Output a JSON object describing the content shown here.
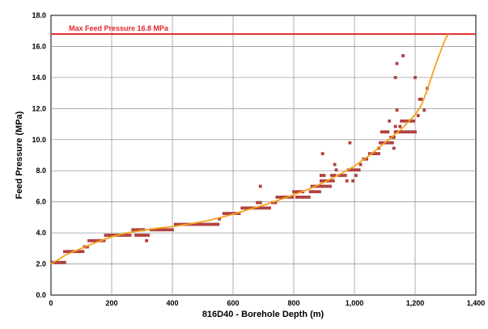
{
  "chart_data": {
    "type": "scatter",
    "title": "",
    "xlabel": "816D40 - Borehole Depth (m)",
    "ylabel": "Feed Pressure (MPa)",
    "xlim": [
      0,
      1400
    ],
    "ylim": [
      0,
      18
    ],
    "x_ticks": [
      0,
      200,
      400,
      600,
      800,
      1000,
      1200,
      1400
    ],
    "x_tick_labels": [
      "0",
      "200",
      "400",
      "600",
      "800",
      "1,000",
      "1,200",
      "1,400"
    ],
    "y_ticks": [
      0,
      2,
      4,
      6,
      8,
      10,
      12,
      14,
      16,
      18
    ],
    "y_tick_labels": [
      "0.0",
      "2.0",
      "4.0",
      "6.0",
      "8.0",
      "10.0",
      "12.0",
      "14.0",
      "16.0",
      "18.0"
    ],
    "grid": true,
    "reference_line": {
      "label": "Max Feed Pressure 16.8 MPa",
      "y": 16.8,
      "color": "#e0262b"
    },
    "colors": {
      "points": "#b0403e",
      "trend": "#f5a21b",
      "grid": "#9a9a9a"
    },
    "series": [
      {
        "kind": "scatter",
        "points": [
          [
            5,
            2.1
          ],
          [
            15,
            2.1
          ],
          [
            25,
            2.1
          ],
          [
            35,
            2.1
          ],
          [
            45,
            2.1
          ],
          [
            45,
            2.8
          ],
          [
            55,
            2.8
          ],
          [
            65,
            2.8
          ],
          [
            75,
            2.8
          ],
          [
            85,
            2.8
          ],
          [
            95,
            2.8
          ],
          [
            105,
            2.8
          ],
          [
            110,
            3.1
          ],
          [
            120,
            3.1
          ],
          [
            125,
            3.5
          ],
          [
            135,
            3.5
          ],
          [
            145,
            3.5
          ],
          [
            155,
            3.5
          ],
          [
            165,
            3.5
          ],
          [
            175,
            3.5
          ],
          [
            180,
            3.85
          ],
          [
            190,
            3.85
          ],
          [
            200,
            3.85
          ],
          [
            210,
            3.85
          ],
          [
            220,
            3.85
          ],
          [
            230,
            3.85
          ],
          [
            240,
            3.85
          ],
          [
            250,
            3.85
          ],
          [
            260,
            3.85
          ],
          [
            270,
            4.2
          ],
          [
            280,
            4.2
          ],
          [
            290,
            4.2
          ],
          [
            300,
            4.2
          ],
          [
            305,
            4.2
          ],
          [
            280,
            3.85
          ],
          [
            290,
            3.85
          ],
          [
            300,
            3.85
          ],
          [
            310,
            3.85
          ],
          [
            320,
            3.85
          ],
          [
            315,
            3.5
          ],
          [
            330,
            4.2
          ],
          [
            340,
            4.2
          ],
          [
            350,
            4.2
          ],
          [
            360,
            4.2
          ],
          [
            370,
            4.2
          ],
          [
            380,
            4.2
          ],
          [
            390,
            4.2
          ],
          [
            400,
            4.2
          ],
          [
            410,
            4.55
          ],
          [
            420,
            4.55
          ],
          [
            430,
            4.55
          ],
          [
            440,
            4.55
          ],
          [
            450,
            4.55
          ],
          [
            460,
            4.55
          ],
          [
            470,
            4.55
          ],
          [
            480,
            4.55
          ],
          [
            490,
            4.55
          ],
          [
            500,
            4.55
          ],
          [
            510,
            4.55
          ],
          [
            520,
            4.55
          ],
          [
            530,
            4.55
          ],
          [
            540,
            4.55
          ],
          [
            550,
            4.55
          ],
          [
            555,
            4.9
          ],
          [
            570,
            5.25
          ],
          [
            580,
            5.25
          ],
          [
            590,
            5.25
          ],
          [
            600,
            5.25
          ],
          [
            610,
            5.25
          ],
          [
            620,
            5.25
          ],
          [
            630,
            5.6
          ],
          [
            640,
            5.6
          ],
          [
            650,
            5.6
          ],
          [
            660,
            5.6
          ],
          [
            670,
            5.6
          ],
          [
            680,
            5.6
          ],
          [
            690,
            5.6
          ],
          [
            700,
            5.6
          ],
          [
            710,
            5.6
          ],
          [
            720,
            5.6
          ],
          [
            680,
            5.95
          ],
          [
            690,
            5.95
          ],
          [
            690,
            7.0
          ],
          [
            730,
            5.95
          ],
          [
            740,
            5.95
          ],
          [
            745,
            6.3
          ],
          [
            755,
            6.3
          ],
          [
            765,
            6.3
          ],
          [
            775,
            6.3
          ],
          [
            785,
            6.3
          ],
          [
            795,
            6.3
          ],
          [
            810,
            6.3
          ],
          [
            820,
            6.3
          ],
          [
            830,
            6.3
          ],
          [
            840,
            6.3
          ],
          [
            850,
            6.3
          ],
          [
            800,
            6.65
          ],
          [
            810,
            6.65
          ],
          [
            820,
            6.65
          ],
          [
            830,
            6.65
          ],
          [
            855,
            6.65
          ],
          [
            865,
            6.65
          ],
          [
            875,
            6.65
          ],
          [
            885,
            6.65
          ],
          [
            860,
            7.0
          ],
          [
            870,
            7.0
          ],
          [
            880,
            7.0
          ],
          [
            890,
            7.0
          ],
          [
            900,
            7.0
          ],
          [
            910,
            7.0
          ],
          [
            920,
            7.0
          ],
          [
            890,
            7.35
          ],
          [
            900,
            7.35
          ],
          [
            910,
            7.35
          ],
          [
            920,
            7.35
          ],
          [
            930,
            7.35
          ],
          [
            890,
            7.7
          ],
          [
            900,
            7.7
          ],
          [
            895,
            9.1
          ],
          [
            925,
            7.7
          ],
          [
            935,
            7.7
          ],
          [
            940,
            8.05
          ],
          [
            935,
            8.4
          ],
          [
            950,
            7.7
          ],
          [
            960,
            7.7
          ],
          [
            970,
            7.7
          ],
          [
            975,
            7.35
          ],
          [
            980,
            8.05
          ],
          [
            990,
            8.05
          ],
          [
            1000,
            8.05
          ],
          [
            1010,
            8.05
          ],
          [
            985,
            9.8
          ],
          [
            995,
            7.35
          ],
          [
            1005,
            7.7
          ],
          [
            1015,
            8.05
          ],
          [
            1020,
            8.4
          ],
          [
            1030,
            8.75
          ],
          [
            1040,
            8.75
          ],
          [
            1050,
            9.1
          ],
          [
            1060,
            9.1
          ],
          [
            1070,
            9.1
          ],
          [
            1080,
            9.1
          ],
          [
            1080,
            9.45
          ],
          [
            1085,
            9.8
          ],
          [
            1095,
            9.8
          ],
          [
            1105,
            9.8
          ],
          [
            1115,
            9.8
          ],
          [
            1125,
            9.8
          ],
          [
            1090,
            10.5
          ],
          [
            1100,
            10.5
          ],
          [
            1110,
            10.5
          ],
          [
            1115,
            11.2
          ],
          [
            1120,
            10.15
          ],
          [
            1130,
            10.15
          ],
          [
            1130,
            9.45
          ],
          [
            1135,
            10.85
          ],
          [
            1135,
            10.5
          ],
          [
            1140,
            10.5
          ],
          [
            1150,
            10.5
          ],
          [
            1160,
            10.5
          ],
          [
            1170,
            10.5
          ],
          [
            1180,
            10.5
          ],
          [
            1190,
            10.5
          ],
          [
            1200,
            10.5
          ],
          [
            1135,
            14.0
          ],
          [
            1140,
            14.9
          ],
          [
            1140,
            11.9
          ],
          [
            1150,
            10.85
          ],
          [
            1155,
            11.2
          ],
          [
            1165,
            11.2
          ],
          [
            1175,
            11.2
          ],
          [
            1185,
            11.2
          ],
          [
            1195,
            11.2
          ],
          [
            1160,
            15.4
          ],
          [
            1200,
            14.0
          ],
          [
            1210,
            11.55
          ],
          [
            1215,
            12.6
          ],
          [
            1220,
            12.6
          ],
          [
            1230,
            11.9
          ],
          [
            1240,
            13.3
          ]
        ]
      },
      {
        "kind": "trend",
        "points": [
          [
            0,
            2.0
          ],
          [
            50,
            2.6
          ],
          [
            100,
            3.0
          ],
          [
            150,
            3.4
          ],
          [
            200,
            3.75
          ],
          [
            250,
            4.0
          ],
          [
            300,
            4.15
          ],
          [
            350,
            4.3
          ],
          [
            400,
            4.4
          ],
          [
            450,
            4.55
          ],
          [
            500,
            4.72
          ],
          [
            550,
            4.95
          ],
          [
            600,
            5.2
          ],
          [
            650,
            5.5
          ],
          [
            700,
            5.78
          ],
          [
            750,
            6.1
          ],
          [
            800,
            6.45
          ],
          [
            850,
            6.82
          ],
          [
            900,
            7.25
          ],
          [
            950,
            7.75
          ],
          [
            1000,
            8.3
          ],
          [
            1050,
            9.0
          ],
          [
            1100,
            9.8
          ],
          [
            1150,
            10.6
          ],
          [
            1200,
            11.6
          ],
          [
            1220,
            12.2
          ],
          [
            1240,
            13.2
          ],
          [
            1260,
            14.4
          ],
          [
            1280,
            15.5
          ],
          [
            1300,
            16.5
          ],
          [
            1310,
            16.8
          ]
        ]
      }
    ]
  }
}
